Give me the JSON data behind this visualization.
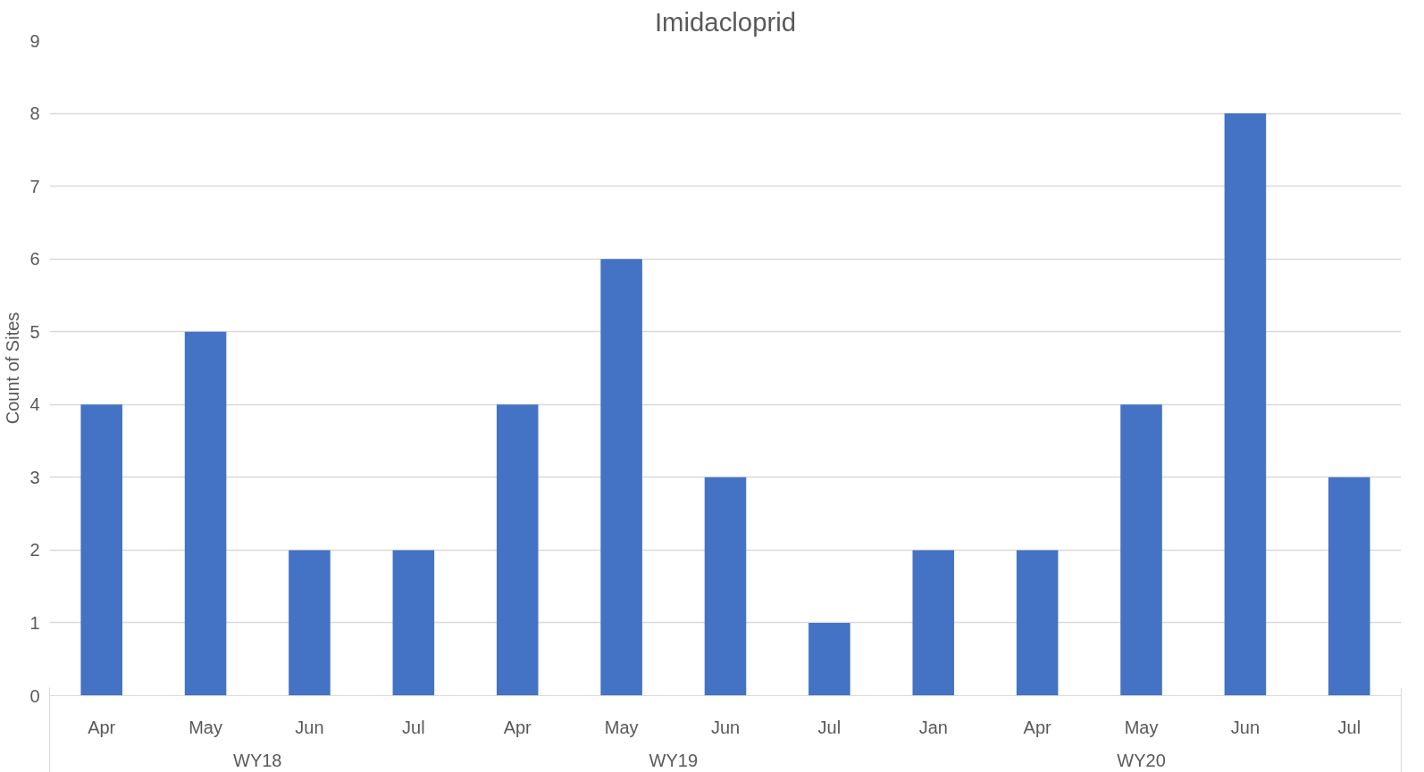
{
  "chart_data": {
    "type": "bar",
    "title": "Imidacloprid",
    "ylabel": "Count of Sites",
    "categories": [
      "Apr",
      "May",
      "Jun",
      "Jul",
      "Apr",
      "May",
      "Jun",
      "Jul",
      "Jan",
      "Apr",
      "May",
      "Jun",
      "Jul"
    ],
    "values": [
      4,
      5,
      2,
      2,
      4,
      6,
      3,
      1,
      2,
      2,
      4,
      8,
      3
    ],
    "color": "#4472c4",
    "annotations": [
      "WY18",
      "WY19",
      "WY20"
    ],
    "ylim": [
      0,
      9
    ],
    "yticks": [
      0,
      1,
      2,
      3,
      4,
      5,
      6,
      7,
      8,
      9
    ],
    "grid": "y"
  }
}
